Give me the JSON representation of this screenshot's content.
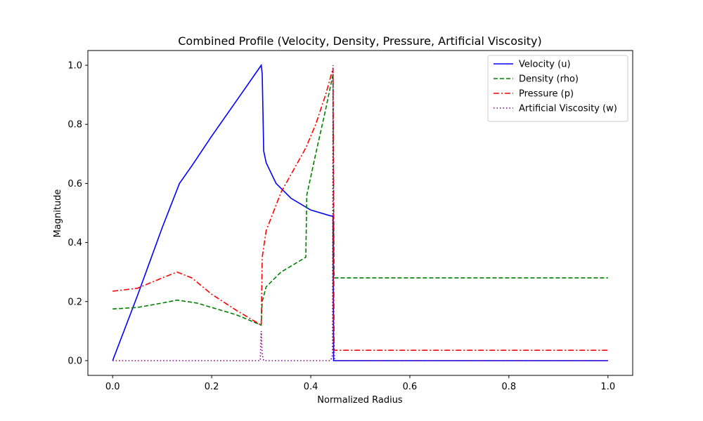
{
  "chart_data": {
    "type": "line",
    "title": "Combined Profile (Velocity, Density, Pressure, Artificial Viscosity)",
    "xlabel": "Normalized Radius",
    "ylabel": "Magnitude",
    "xlim": [
      -0.05,
      1.05
    ],
    "ylim": [
      -0.05,
      1.05
    ],
    "xticks": [
      0.0,
      0.2,
      0.4,
      0.6,
      0.8,
      1.0
    ],
    "xtick_labels": [
      "0.0",
      "0.2",
      "0.4",
      "0.6",
      "0.8",
      "1.0"
    ],
    "yticks": [
      0.0,
      0.2,
      0.4,
      0.6,
      0.8,
      1.0
    ],
    "ytick_labels": [
      "0.0",
      "0.2",
      "0.4",
      "0.6",
      "0.8",
      "1.0"
    ],
    "grid": false,
    "legend_position": "top-right",
    "series": [
      {
        "name": "Velocity (u)",
        "color": "#0000ff",
        "style": "solid",
        "x": [
          0.0,
          0.05,
          0.1,
          0.135,
          0.16,
          0.2,
          0.25,
          0.3,
          0.302,
          0.305,
          0.31,
          0.33,
          0.36,
          0.4,
          0.44,
          0.445,
          0.446,
          1.0
        ],
        "y": [
          0.0,
          0.22,
          0.45,
          0.6,
          0.66,
          0.76,
          0.88,
          1.0,
          0.97,
          0.71,
          0.67,
          0.6,
          0.55,
          0.51,
          0.49,
          0.49,
          0.0,
          0.0
        ]
      },
      {
        "name": "Density (rho)",
        "color": "#008000",
        "style": "dashed",
        "x": [
          0.0,
          0.05,
          0.1,
          0.13,
          0.17,
          0.2,
          0.25,
          0.3,
          0.302,
          0.31,
          0.34,
          0.37,
          0.39,
          0.392,
          0.41,
          0.43,
          0.445,
          0.447,
          1.0
        ],
        "y": [
          0.175,
          0.18,
          0.195,
          0.205,
          0.195,
          0.18,
          0.155,
          0.12,
          0.2,
          0.25,
          0.3,
          0.33,
          0.35,
          0.56,
          0.7,
          0.85,
          0.97,
          0.28,
          0.28
        ]
      },
      {
        "name": "Pressure (p)",
        "color": "#ff0000",
        "style": "dashdot",
        "x": [
          0.0,
          0.05,
          0.1,
          0.13,
          0.16,
          0.2,
          0.25,
          0.3,
          0.302,
          0.31,
          0.34,
          0.37,
          0.39,
          0.41,
          0.43,
          0.445,
          0.447,
          1.0
        ],
        "y": [
          0.235,
          0.245,
          0.28,
          0.3,
          0.28,
          0.225,
          0.17,
          0.12,
          0.35,
          0.44,
          0.57,
          0.66,
          0.72,
          0.8,
          0.9,
          0.99,
          0.035,
          0.035
        ]
      },
      {
        "name": "Artificial Viscosity (w)",
        "color": "#800080",
        "style": "dotted",
        "x": [
          0.0,
          0.298,
          0.3,
          0.302,
          0.305,
          0.44,
          0.444,
          0.445,
          0.446,
          0.448,
          1.0
        ],
        "y": [
          0.0,
          0.0,
          0.1,
          0.02,
          0.0,
          0.0,
          0.02,
          1.0,
          0.1,
          0.0,
          0.0
        ]
      }
    ]
  }
}
